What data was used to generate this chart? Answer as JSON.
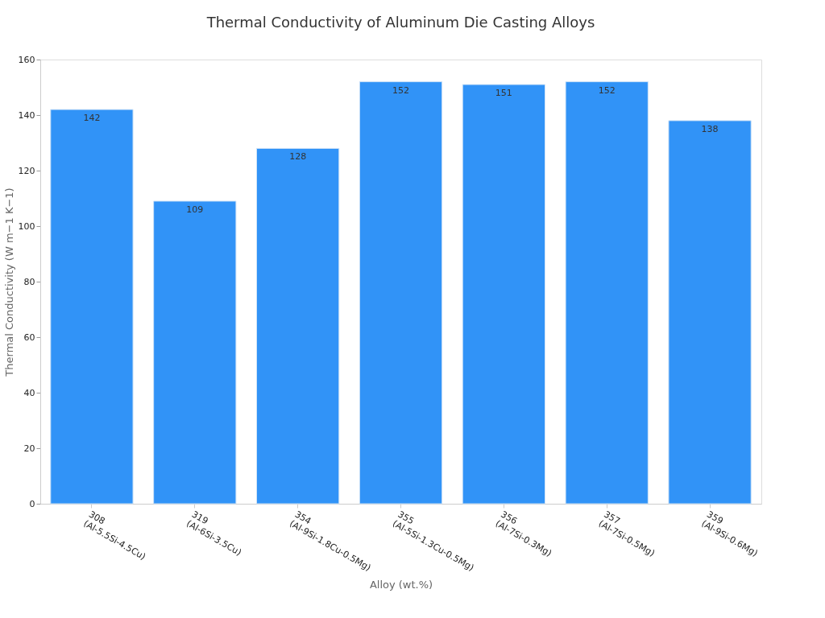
{
  "chart_data": {
    "type": "bar",
    "title": "Thermal Conductivity of Aluminum Die Casting Alloys",
    "xlabel": "Alloy (wt.%)",
    "ylabel": "Thermal Conductivity (W m−1 K−1)",
    "categories": [
      "308\n(Al-5.5Si-4.5Cu)",
      "319\n(Al-6Si-3.5Cu)",
      "354\n(Al-9Si-1.8Cu-0.5Mg)",
      "355\n(Al-5Si-1.3Cu-0.5Mg)",
      "356\n(Al-7Si-0.3Mg)",
      "357\n(Al-7Si-0.5Mg)",
      "359\n(Al-9Si-0.6Mg)"
    ],
    "values": [
      142,
      109,
      128,
      152,
      151,
      152,
      138
    ],
    "color": "#3193f7",
    "ylim": [
      0,
      160
    ],
    "yticks": [
      0,
      20,
      40,
      60,
      80,
      100,
      120,
      140,
      160
    ],
    "grid": false,
    "data_labels": true
  }
}
